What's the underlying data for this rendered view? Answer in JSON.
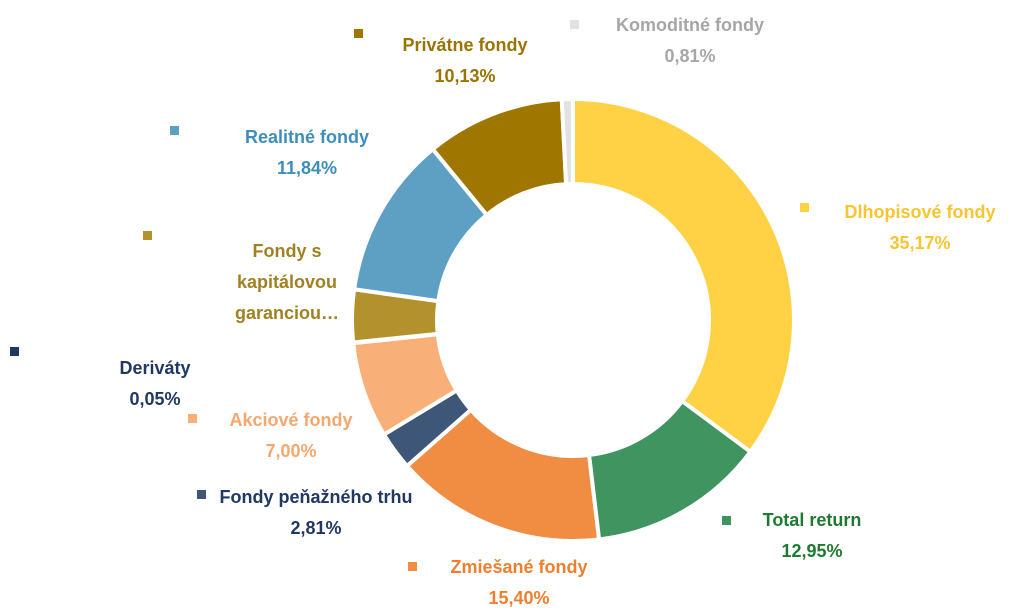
{
  "chart_data": {
    "type": "pie",
    "donut": true,
    "categories": [
      "Dlhopisové fondy",
      "Total return",
      "Zmiešané fondy",
      "Fondy peňažného trhu",
      "Akciové fondy",
      "Deriváty",
      "Fondy s kapitálovou garanciou…",
      "Realitné fondy",
      "Privátne fondy",
      "Komoditné fondy"
    ],
    "values": [
      35.17,
      12.95,
      15.4,
      2.81,
      7.0,
      0.05,
      3.84,
      11.84,
      10.13,
      0.81
    ],
    "value_labels": [
      "35,17%",
      "12,95%",
      "15,40%",
      "2,81%",
      "7,00%",
      "0,05%",
      null,
      "11,84%",
      "10,13%",
      "0,81%"
    ],
    "colors": [
      "#FFD145",
      "#3F9460",
      "#F08D42",
      "#3E5677",
      "#F8B078",
      "#1F3864",
      "#B3922E",
      "#5E9FC4",
      "#9E7600",
      "#E2E2E2"
    ],
    "label_colors": [
      "#F7C531",
      "#1E7A32",
      "#EE7F2E",
      "#1F3864",
      "#F4A86E",
      "#1F3864",
      "#A08122",
      "#3E8DBA",
      "#9A7300",
      "#A6A6A6"
    ]
  }
}
